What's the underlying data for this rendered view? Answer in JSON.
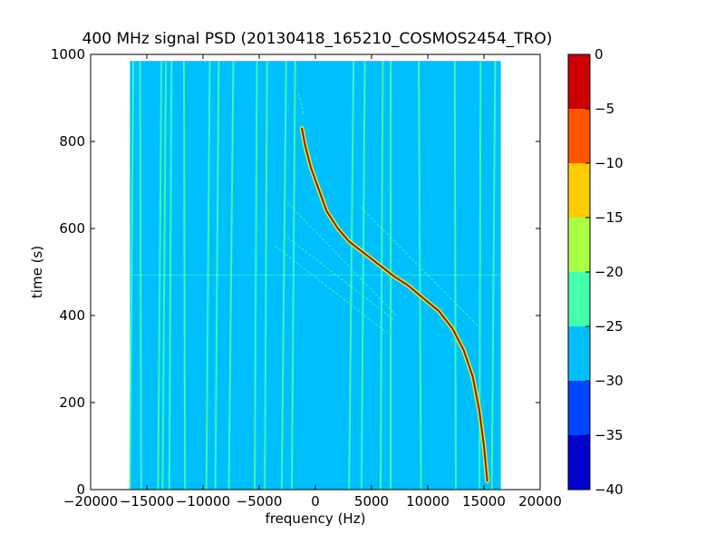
{
  "chart_data": {
    "type": "heatmap",
    "title": "400 MHz signal PSD (20130418_165210_COSMOS2454_TRO)",
    "xlabel": "frequency (Hz)",
    "ylabel": "time (s)",
    "xlim": [
      -20000,
      20000
    ],
    "ylim": [
      0,
      1000
    ],
    "data_extent": {
      "x": [
        -16500,
        16500
      ],
      "y": [
        0,
        985
      ]
    },
    "xticks": [
      -20000,
      -15000,
      -10000,
      -5000,
      0,
      5000,
      10000,
      15000,
      20000
    ],
    "xtick_labels": [
      "−20000",
      "−15000",
      "−10000",
      "−5000",
      "0",
      "5000",
      "10000",
      "15000",
      "20000"
    ],
    "yticks": [
      0,
      200,
      400,
      600,
      800,
      1000
    ],
    "ytick_labels": [
      "0",
      "200",
      "400",
      "600",
      "800",
      "1000"
    ],
    "background_level": -27.5,
    "colorbar": {
      "range": [
        -40,
        0
      ],
      "ticks": [
        0,
        -5,
        -10,
        -15,
        -20,
        -25,
        -30,
        -35,
        -40
      ],
      "tick_labels": [
        "0",
        "−5",
        "−10",
        "−15",
        "−20",
        "−25",
        "−30",
        "−35",
        "−40"
      ],
      "bands": [
        {
          "from": -40,
          "to": -35,
          "color": "#0000cc"
        },
        {
          "from": -35,
          "to": -30,
          "color": "#0044ff"
        },
        {
          "from": -30,
          "to": -25,
          "color": "#00bfff"
        },
        {
          "from": -25,
          "to": -20,
          "color": "#44ffaa"
        },
        {
          "from": -20,
          "to": -15,
          "color": "#aaff44"
        },
        {
          "from": -15,
          "to": -10,
          "color": "#ffcc00"
        },
        {
          "from": -10,
          "to": -5,
          "color": "#ff5500"
        },
        {
          "from": -5,
          "to": 0,
          "color": "#cc0000"
        }
      ]
    },
    "vertical_lines": [
      {
        "f_bottom": -16500,
        "f_top": -16200,
        "level": -22
      },
      {
        "f_bottom": -15500,
        "f_top": -15600,
        "level": -22
      },
      {
        "f_bottom": -14000,
        "f_top": -13700,
        "level": -22
      },
      {
        "f_bottom": -13600,
        "f_top": -13300,
        "level": -22
      },
      {
        "f_bottom": -13000,
        "f_top": -12800,
        "level": -22
      },
      {
        "f_bottom": -11600,
        "f_top": -11700,
        "level": -22
      },
      {
        "f_bottom": -9700,
        "f_top": -9400,
        "level": -22
      },
      {
        "f_bottom": -8900,
        "f_top": -8600,
        "level": -22
      },
      {
        "f_bottom": -7700,
        "f_top": -7300,
        "level": -22
      },
      {
        "f_bottom": -5400,
        "f_top": -5200,
        "level": -22
      },
      {
        "f_bottom": -4500,
        "f_top": -4300,
        "level": -22
      },
      {
        "f_bottom": -3000,
        "f_top": -2600,
        "level": -22
      },
      {
        "f_bottom": -2100,
        "f_top": -1800,
        "level": -22
      },
      {
        "f_bottom": 3000,
        "f_top": 3400,
        "level": -22
      },
      {
        "f_bottom": 4100,
        "f_top": 4400,
        "level": -22
      },
      {
        "f_bottom": 5800,
        "f_top": 6000,
        "level": -22
      },
      {
        "f_bottom": 6700,
        "f_top": 6700,
        "level": -22
      },
      {
        "f_bottom": 9400,
        "f_top": 9200,
        "level": -22
      },
      {
        "f_bottom": 12500,
        "f_top": 12400,
        "level": -22
      },
      {
        "f_bottom": 14600,
        "f_top": 14700,
        "level": -22
      },
      {
        "f_bottom": 15700,
        "f_top": 16000,
        "level": -22
      }
    ],
    "series": [
      {
        "x": [
          15300,
          15000,
          14600,
          14000,
          13200,
          12200,
          11000,
          9600,
          8200,
          7000,
          6000,
          5000,
          4000,
          3000,
          2000,
          1000,
          300,
          -400,
          -900,
          -1200
        ],
        "y": [
          20,
          100,
          180,
          260,
          320,
          370,
          410,
          440,
          470,
          490,
          510,
          530,
          550,
          570,
          600,
          640,
          690,
          740,
          790,
          830
        ],
        "level": -2.5
      },
      {
        "x": [
          7200,
          -2500
        ],
        "y": [
          400,
          660
        ],
        "level": -22
      },
      {
        "x": [
          14700,
          4000
        ],
        "y": [
          370,
          650
        ],
        "level": -22
      },
      {
        "x": [
          -2500,
          7000
        ],
        "y": [
          580,
          390
        ],
        "level": -22
      },
      {
        "x": [
          -3600,
          6400
        ],
        "y": [
          560,
          360
        ],
        "level": -22
      },
      {
        "x": [
          -1500,
          -1000
        ],
        "y": [
          910,
          860
        ],
        "level": -22
      }
    ],
    "horizontal_lines": [
      {
        "y": 493,
        "level": -22
      }
    ]
  }
}
